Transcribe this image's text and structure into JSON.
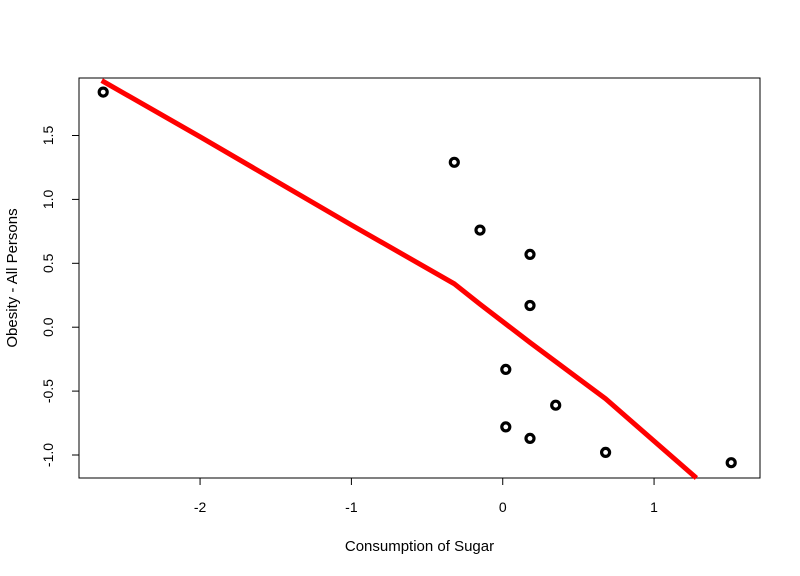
{
  "chart_data": {
    "type": "scatter",
    "title": "",
    "xlabel": "Consumption of Sugar",
    "ylabel": "Obesity - All Persons",
    "xlim": [
      -2.8,
      1.7
    ],
    "ylim": [
      -1.18,
      1.95
    ],
    "x_ticks": [
      -2,
      -1,
      0,
      1
    ],
    "x_tick_labels": [
      "-2",
      "-1",
      "0",
      "1"
    ],
    "y_ticks": [
      -1.0,
      -0.5,
      0.0,
      0.5,
      1.0,
      1.5
    ],
    "y_tick_labels": [
      "-1.0",
      "-0.5",
      "0.0",
      "0.5",
      "1.0",
      "1.5"
    ],
    "grid": false,
    "points": [
      {
        "x": -2.64,
        "y": 1.84
      },
      {
        "x": -0.32,
        "y": 1.29
      },
      {
        "x": -0.15,
        "y": 0.76
      },
      {
        "x": 0.18,
        "y": 0.57
      },
      {
        "x": 0.18,
        "y": 0.17
      },
      {
        "x": 0.02,
        "y": -0.33
      },
      {
        "x": 0.35,
        "y": -0.61
      },
      {
        "x": 0.02,
        "y": -0.78
      },
      {
        "x": 0.18,
        "y": -0.87
      },
      {
        "x": 0.68,
        "y": -0.98
      },
      {
        "x": 1.51,
        "y": -1.06
      }
    ],
    "fit_line": {
      "color": "#ff0000",
      "x": [
        -2.65,
        -2.0,
        -1.0,
        -0.32,
        -0.15,
        0.18,
        0.68,
        1.28
      ],
      "y": [
        1.93,
        1.49,
        0.8,
        0.34,
        0.18,
        -0.12,
        -0.56,
        -1.18
      ]
    },
    "point_color": "#000000"
  }
}
